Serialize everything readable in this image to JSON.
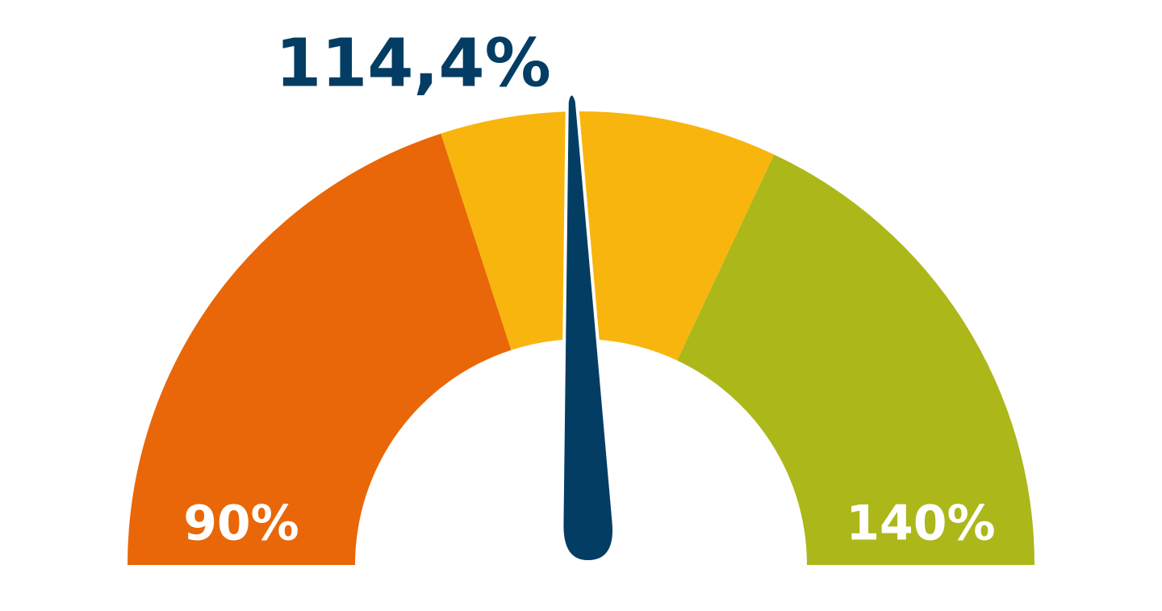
{
  "chart_data": {
    "type": "gauge",
    "values": [
      114.4
    ],
    "value_labels": [
      "114,4%"
    ],
    "needle_color": "#033d63",
    "ylim": [
      90,
      140
    ],
    "yticks": [
      {
        "value": 90,
        "label": "90%"
      },
      {
        "value": 140,
        "label": "140%"
      }
    ],
    "bands": [
      {
        "from": 90,
        "to": 110,
        "color": "#e96708"
      },
      {
        "from": 110,
        "to": 122,
        "color": "#f8b50e"
      },
      {
        "from": 122,
        "to": 140,
        "color": "#acb71a"
      }
    ]
  }
}
